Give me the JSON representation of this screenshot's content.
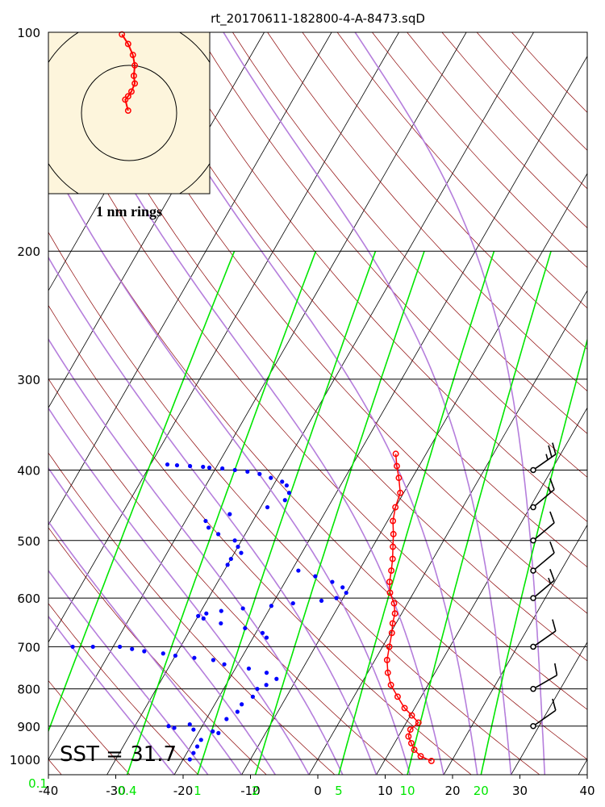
{
  "chart_data": {
    "type": "scatter",
    "title": "rt_20170611-182800-4-A-8473.sqD",
    "x_ticks": [
      "-40",
      "-30",
      "-20",
      "-10",
      "0",
      "10",
      "20",
      "30",
      "40"
    ],
    "xlim": [
      -40,
      40
    ],
    "p_ticks": [
      "100",
      "200",
      "300",
      "400",
      "500",
      "600",
      "700",
      "800",
      "900",
      "1000"
    ],
    "plim": [
      1050,
      100
    ],
    "mixing_ratio_labels": [
      "0.1",
      "0.4",
      "1",
      "2",
      "5",
      "10",
      "20"
    ],
    "mixing_ratio_values": [
      0.1,
      0.4,
      1,
      2,
      5,
      10,
      20
    ],
    "annotation": "SST = 31.7",
    "inset_label": "1 nm rings",
    "colors": {
      "temperature": "#ff0000",
      "dewpoint": "#0000ff",
      "isotherm": "#000000",
      "dry_adiabat": "#8b0000",
      "moist_adiabat": "#b57edc",
      "mixing_ratio": "#00e600",
      "inset_bg": "#fdf5dc",
      "wind_barb": "#000000"
    },
    "temperature": [
      [
        380,
        -14.5
      ],
      [
        395,
        -13.3
      ],
      [
        410,
        -12.0
      ],
      [
        430,
        -10.5
      ],
      [
        450,
        -10.0
      ],
      [
        470,
        -9.2
      ],
      [
        490,
        -8.0
      ],
      [
        510,
        -7.0
      ],
      [
        530,
        -6.0
      ],
      [
        550,
        -5.2
      ],
      [
        570,
        -4.5
      ],
      [
        590,
        -3.5
      ],
      [
        610,
        -2.0
      ],
      [
        630,
        -1.0
      ],
      [
        650,
        -0.5
      ],
      [
        670,
        0.2
      ],
      [
        700,
        1.0
      ],
      [
        730,
        1.8
      ],
      [
        760,
        3.0
      ],
      [
        790,
        4.5
      ],
      [
        820,
        6.5
      ],
      [
        850,
        8.5
      ],
      [
        870,
        10.2
      ],
      [
        890,
        11.8
      ],
      [
        910,
        11.2
      ],
      [
        930,
        11.5
      ],
      [
        950,
        12.5
      ],
      [
        970,
        13.5
      ],
      [
        990,
        15.0
      ],
      [
        1005,
        17.0
      ]
    ],
    "dewpoint": [
      [
        393,
        -47.5
      ],
      [
        394,
        -46
      ],
      [
        395,
        -44
      ],
      [
        396,
        -42
      ],
      [
        397,
        -41
      ],
      [
        398,
        -39
      ],
      [
        400,
        -37
      ],
      [
        402,
        -35
      ],
      [
        405,
        -33
      ],
      [
        410,
        -31
      ],
      [
        415,
        -29
      ],
      [
        420,
        -28
      ],
      [
        430,
        -27
      ],
      [
        440,
        -27
      ],
      [
        450,
        -29
      ],
      [
        460,
        -34
      ],
      [
        470,
        -37
      ],
      [
        480,
        -36
      ],
      [
        490,
        -34
      ],
      [
        500,
        -31
      ],
      [
        510,
        -30
      ],
      [
        520,
        -29
      ],
      [
        530,
        -30
      ],
      [
        540,
        -30
      ],
      [
        550,
        -19
      ],
      [
        560,
        -16
      ],
      [
        570,
        -13
      ],
      [
        580,
        -11
      ],
      [
        590,
        -10
      ],
      [
        600,
        -11
      ],
      [
        605,
        -13
      ],
      [
        610,
        -17
      ],
      [
        615,
        -20
      ],
      [
        620,
        -24
      ],
      [
        625,
        -27
      ],
      [
        630,
        -29
      ],
      [
        635,
        -30
      ],
      [
        640,
        -29
      ],
      [
        650,
        -26
      ],
      [
        660,
        -22
      ],
      [
        670,
        -19
      ],
      [
        680,
        -18
      ],
      [
        700,
        -46
      ],
      [
        700,
        -43
      ],
      [
        700,
        -39
      ],
      [
        705,
        -37
      ],
      [
        710,
        -35
      ],
      [
        715,
        -32
      ],
      [
        720,
        -30
      ],
      [
        725,
        -27
      ],
      [
        730,
        -24
      ],
      [
        740,
        -22
      ],
      [
        750,
        -18
      ],
      [
        760,
        -15
      ],
      [
        775,
        -13
      ],
      [
        790,
        -14
      ],
      [
        800,
        -15
      ],
      [
        820,
        -15
      ],
      [
        840,
        -16
      ],
      [
        860,
        -16
      ],
      [
        880,
        -17
      ],
      [
        895,
        -22
      ],
      [
        900,
        -25
      ],
      [
        905,
        -24
      ],
      [
        910,
        -21
      ],
      [
        915,
        -18
      ],
      [
        920,
        -17
      ],
      [
        940,
        -19
      ],
      [
        960,
        -19
      ],
      [
        980,
        -19
      ],
      [
        1000,
        -19
      ]
    ],
    "wind_barbs": [
      {
        "p": 400,
        "speed": 25,
        "dir": 235
      },
      {
        "p": 450,
        "speed": 15,
        "dir": 230
      },
      {
        "p": 500,
        "speed": 10,
        "dir": 230
      },
      {
        "p": 550,
        "speed": 10,
        "dir": 230
      },
      {
        "p": 600,
        "speed": 15,
        "dir": 230
      },
      {
        "p": 700,
        "speed": 10,
        "dir": 235
      },
      {
        "p": 800,
        "speed": 10,
        "dir": 240
      },
      {
        "p": 900,
        "speed": 10,
        "dir": 235
      }
    ],
    "hodograph": {
      "rings_nm": [
        1,
        2
      ],
      "track": [
        [
          -0.15,
          1.65
        ],
        [
          -0.02,
          1.45
        ],
        [
          0.08,
          1.22
        ],
        [
          0.12,
          1.0
        ],
        [
          0.1,
          0.78
        ],
        [
          0.12,
          0.62
        ],
        [
          0.05,
          0.45
        ],
        [
          -0.02,
          0.35
        ],
        [
          -0.08,
          0.28
        ],
        [
          -0.02,
          0.05
        ]
      ]
    }
  }
}
